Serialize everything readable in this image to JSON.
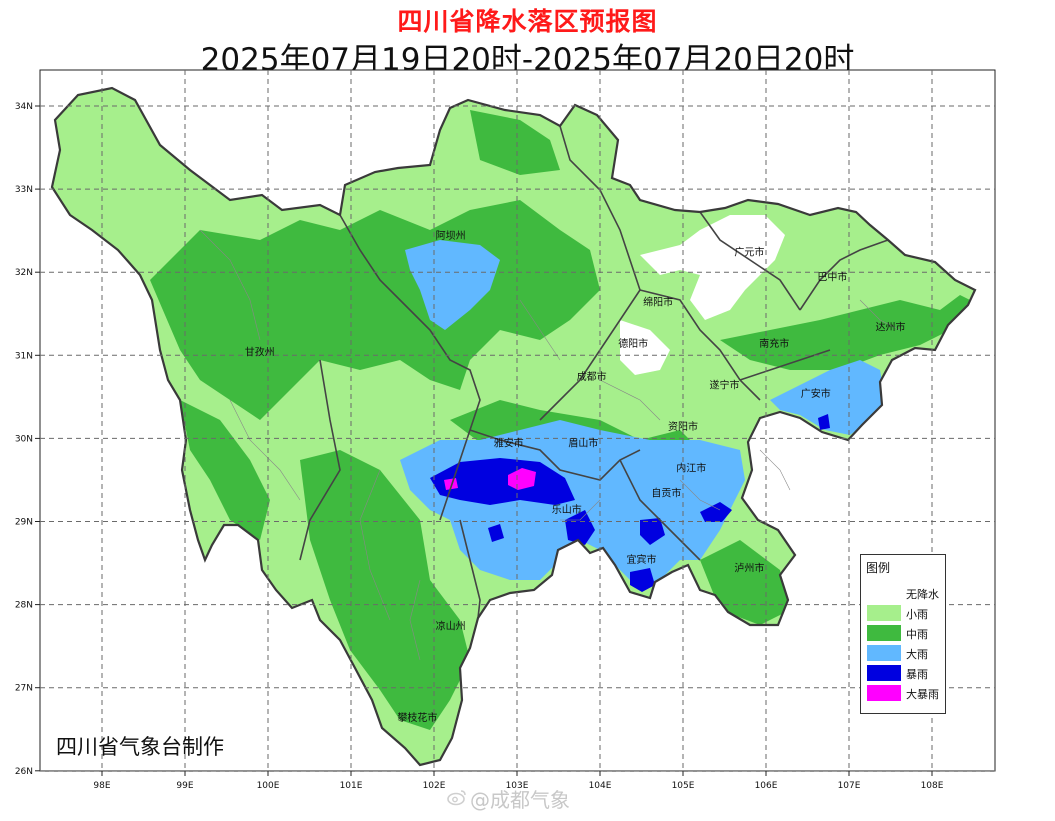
{
  "title": "四川省降水落区预报图",
  "subtitle": "2025年07月19日20时-2025年07月20日20时",
  "producer": "四川省气象台制作",
  "watermark": "@成都气象",
  "axes": {
    "lon_labels": [
      "98E",
      "99E",
      "100E",
      "101E",
      "102E",
      "103E",
      "104E",
      "105E",
      "106E",
      "107E",
      "108E"
    ],
    "lat_labels": [
      "34N",
      "33N",
      "32N",
      "31N",
      "30N",
      "29N",
      "28N",
      "27N",
      "26N"
    ],
    "lon_range": [
      97.3,
      108.7
    ],
    "lat_range": [
      26,
      34.45
    ],
    "grid": "dashed"
  },
  "legend": {
    "title": "图例",
    "items": [
      {
        "label": "无降水",
        "color": "#ffffff"
      },
      {
        "label": "小雨",
        "color": "#a6ef8c"
      },
      {
        "label": "中雨",
        "color": "#3fba3f"
      },
      {
        "label": "大雨",
        "color": "#61b8ff"
      },
      {
        "label": "暴雨",
        "color": "#0000e0"
      },
      {
        "label": "大暴雨",
        "color": "#ff00ff"
      }
    ]
  },
  "cities": [
    {
      "name": "阿坝州",
      "lon": 102.2,
      "lat": 32.4
    },
    {
      "name": "广元市",
      "lon": 105.8,
      "lat": 32.2
    },
    {
      "name": "巴中市",
      "lon": 106.8,
      "lat": 31.9
    },
    {
      "name": "绵阳市",
      "lon": 104.7,
      "lat": 31.6
    },
    {
      "name": "达州市",
      "lon": 107.5,
      "lat": 31.3
    },
    {
      "name": "甘孜州",
      "lon": 99.9,
      "lat": 31.0
    },
    {
      "name": "德阳市",
      "lon": 104.4,
      "lat": 31.1
    },
    {
      "name": "南充市",
      "lon": 106.1,
      "lat": 31.1
    },
    {
      "name": "成都市",
      "lon": 103.9,
      "lat": 30.7
    },
    {
      "name": "遂宁市",
      "lon": 105.5,
      "lat": 30.6
    },
    {
      "name": "广安市",
      "lon": 106.6,
      "lat": 30.5
    },
    {
      "name": "资阳市",
      "lon": 105.0,
      "lat": 30.1
    },
    {
      "name": "雅安市",
      "lon": 102.9,
      "lat": 29.9
    },
    {
      "name": "眉山市",
      "lon": 103.8,
      "lat": 29.9
    },
    {
      "name": "内江市",
      "lon": 105.1,
      "lat": 29.6
    },
    {
      "name": "自贡市",
      "lon": 104.8,
      "lat": 29.3
    },
    {
      "name": "乐山市",
      "lon": 103.6,
      "lat": 29.1
    },
    {
      "name": "宜宾市",
      "lon": 104.5,
      "lat": 28.5
    },
    {
      "name": "泸州市",
      "lon": 105.8,
      "lat": 28.4
    },
    {
      "name": "凉山州",
      "lon": 102.2,
      "lat": 27.7
    },
    {
      "name": "攀枝花市",
      "lon": 101.8,
      "lat": 26.6
    }
  ]
}
